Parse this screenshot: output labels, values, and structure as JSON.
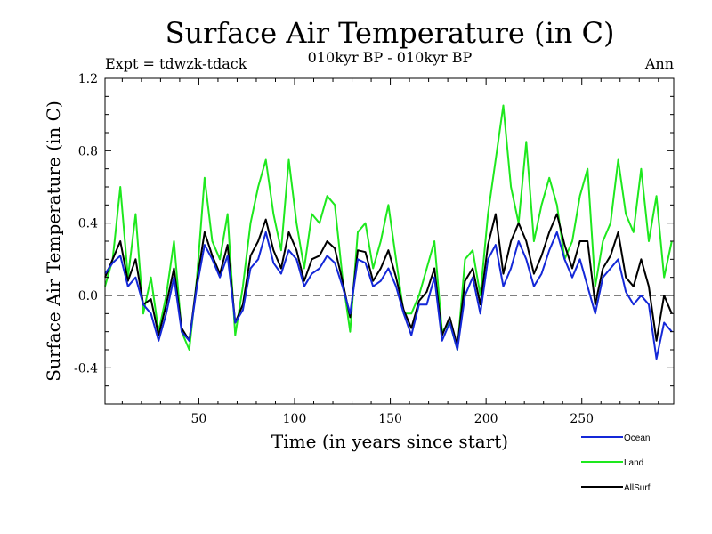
{
  "chart_data": {
    "type": "line",
    "title": "Surface Air Temperature (in C)",
    "subtitle": "010kyr BP - 010kyr BP",
    "left_label": "Expt = tdwzk-tdack",
    "right_label": "Ann",
    "xlabel": "Time (in years since start)",
    "ylabel": "Surface Air Temperature (in C)",
    "xlim": [
      1,
      298
    ],
    "ylim": [
      -0.6,
      1.2
    ],
    "xticks": [
      50,
      100,
      150,
      200,
      250
    ],
    "xtick_labels": [
      "50",
      "100",
      "150",
      "200",
      "250"
    ],
    "yticks": [
      -0.4,
      0.0,
      0.4,
      0.8,
      1.2
    ],
    "ytick_labels": [
      "-0.4",
      "0.0",
      "0.4",
      "0.8",
      "1.2"
    ],
    "reference_line": 0.0,
    "x": [
      1,
      5,
      9,
      13,
      17,
      21,
      25,
      29,
      33,
      37,
      41,
      45,
      49,
      53,
      57,
      61,
      65,
      69,
      73,
      77,
      81,
      85,
      89,
      93,
      97,
      101,
      105,
      109,
      113,
      117,
      121,
      125,
      129,
      133,
      137,
      141,
      145,
      149,
      153,
      157,
      161,
      165,
      169,
      173,
      177,
      181,
      185,
      189,
      193,
      197,
      201,
      205,
      209,
      213,
      217,
      221,
      225,
      229,
      233,
      237,
      241,
      245,
      249,
      253,
      257,
      261,
      265,
      269,
      273,
      277,
      281,
      285,
      289,
      293,
      297
    ],
    "series": [
      {
        "name": "Ocean",
        "color": "#1428d8",
        "values": [
          0.12,
          0.18,
          0.22,
          0.05,
          0.1,
          -0.05,
          -0.1,
          -0.25,
          -0.1,
          0.1,
          -0.2,
          -0.25,
          0.05,
          0.28,
          0.2,
          0.1,
          0.22,
          -0.15,
          -0.08,
          0.15,
          0.2,
          0.35,
          0.18,
          0.12,
          0.25,
          0.2,
          0.05,
          0.12,
          0.15,
          0.22,
          0.18,
          0.05,
          -0.1,
          0.2,
          0.18,
          0.05,
          0.08,
          0.15,
          0.05,
          -0.1,
          -0.22,
          -0.05,
          -0.05,
          0.1,
          -0.25,
          -0.15,
          -0.3,
          0.0,
          0.1,
          -0.1,
          0.2,
          0.28,
          0.05,
          0.15,
          0.3,
          0.2,
          0.05,
          0.12,
          0.25,
          0.35,
          0.2,
          0.1,
          0.2,
          0.05,
          -0.1,
          0.1,
          0.15,
          0.2,
          0.02,
          -0.05,
          0.0,
          -0.05,
          -0.35,
          -0.15,
          -0.2
        ]
      },
      {
        "name": "Land",
        "color": "#1ee81e",
        "values": [
          0.05,
          0.2,
          0.6,
          0.1,
          0.45,
          -0.1,
          0.1,
          -0.2,
          0.0,
          0.3,
          -0.2,
          -0.3,
          0.1,
          0.65,
          0.3,
          0.2,
          0.45,
          -0.22,
          0.05,
          0.4,
          0.6,
          0.75,
          0.45,
          0.25,
          0.75,
          0.4,
          0.15,
          0.45,
          0.4,
          0.55,
          0.5,
          0.1,
          -0.2,
          0.35,
          0.4,
          0.15,
          0.3,
          0.5,
          0.2,
          -0.1,
          -0.1,
          0.0,
          0.15,
          0.3,
          -0.2,
          -0.15,
          -0.3,
          0.2,
          0.25,
          0.0,
          0.45,
          0.75,
          1.05,
          0.6,
          0.4,
          0.85,
          0.3,
          0.5,
          0.65,
          0.5,
          0.2,
          0.3,
          0.55,
          0.7,
          0.05,
          0.3,
          0.4,
          0.75,
          0.45,
          0.35,
          0.7,
          0.3,
          0.55,
          0.1,
          0.3
        ]
      },
      {
        "name": "AllSurf",
        "color": "#000000",
        "values": [
          0.1,
          0.2,
          0.3,
          0.08,
          0.2,
          -0.05,
          -0.02,
          -0.22,
          -0.05,
          0.15,
          -0.18,
          -0.25,
          0.08,
          0.35,
          0.22,
          0.12,
          0.28,
          -0.15,
          -0.05,
          0.22,
          0.3,
          0.42,
          0.25,
          0.15,
          0.35,
          0.25,
          0.08,
          0.2,
          0.22,
          0.3,
          0.26,
          0.08,
          -0.12,
          0.25,
          0.24,
          0.08,
          0.15,
          0.25,
          0.1,
          -0.08,
          -0.18,
          -0.03,
          0.02,
          0.15,
          -0.22,
          -0.12,
          -0.28,
          0.08,
          0.15,
          -0.05,
          0.28,
          0.45,
          0.12,
          0.3,
          0.4,
          0.3,
          0.12,
          0.22,
          0.35,
          0.45,
          0.28,
          0.15,
          0.3,
          0.3,
          -0.05,
          0.15,
          0.22,
          0.35,
          0.1,
          0.05,
          0.2,
          0.05,
          -0.25,
          0.0,
          -0.1
        ]
      }
    ]
  }
}
